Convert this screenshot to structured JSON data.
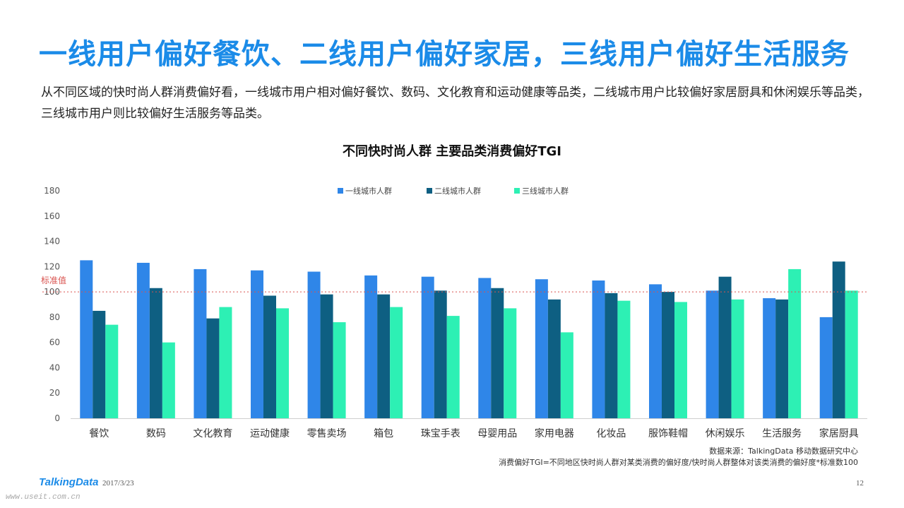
{
  "header": {
    "title": "一线用户偏好餐饮、二线用户偏好家居，三线用户偏好生活服务",
    "description": "从不同区域的快时尚人群消费偏好看，一线城市用户相对偏好餐饮、数码、文化教育和运动健康等品类，二线城市用户比较偏好家居厨具和休闲娱乐等品类，三线城市用户则比较偏好生活服务等品类。"
  },
  "chart_data": {
    "type": "bar",
    "title": "不同快时尚人群  主要品类消费偏好TGI",
    "categories": [
      "餐饮",
      "数码",
      "文化教育",
      "运动健康",
      "零售卖场",
      "箱包",
      "珠宝手表",
      "母婴用品",
      "家用电器",
      "化妆品",
      "服饰鞋帽",
      "休闲娱乐",
      "生活服务",
      "家居厨具"
    ],
    "series": [
      {
        "name": "一线城市人群",
        "color": "#2f86e8",
        "values": [
          125,
          123,
          118,
          117,
          116,
          113,
          112,
          111,
          110,
          109,
          106,
          101,
          95,
          80
        ]
      },
      {
        "name": "二线城市人群",
        "color": "#0e5f82",
        "values": [
          85,
          103,
          79,
          97,
          98,
          98,
          101,
          103,
          94,
          99,
          100,
          112,
          94,
          124
        ]
      },
      {
        "name": "三线城市人群",
        "color": "#2df0b4",
        "values": [
          74,
          60,
          88,
          87,
          76,
          88,
          81,
          87,
          68,
          93,
          92,
          94,
          118,
          101
        ]
      }
    ],
    "ylim": [
      0,
      180
    ],
    "yticks": [
      0,
      20,
      40,
      60,
      80,
      100,
      120,
      140,
      160,
      180
    ],
    "reference_line": {
      "value": 100,
      "label": "标准值",
      "color": "#d9534f"
    },
    "legend_position": "top-center",
    "grid": false
  },
  "footer": {
    "source": "数据来源：TalkingData 移动数据研究中心",
    "note": "消费偏好TGI=不同地区快时尚人群对某类消费的偏好度/快时尚人群整体对该类消费的偏好度*标准数100",
    "logo": "TalkingData",
    "date": "2017/3/23",
    "page": "12",
    "watermark": "www.useit.com.cn"
  }
}
